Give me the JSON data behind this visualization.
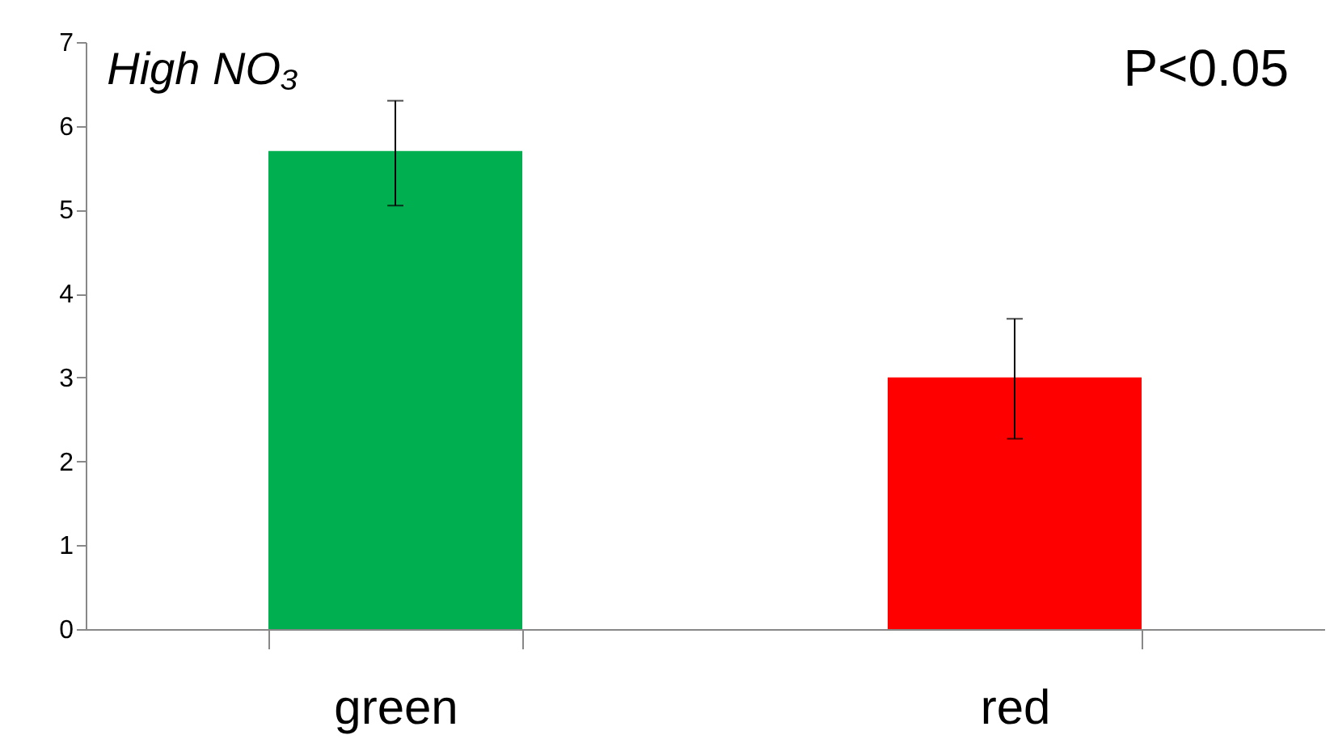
{
  "chart_data": {
    "type": "bar",
    "title": "High NO₃",
    "categories": [
      "green",
      "red"
    ],
    "values": [
      5.7,
      3.0
    ],
    "colors": [
      "#00b050",
      "#ff0000"
    ],
    "errors": [
      [
        5.05,
        6.3
      ],
      [
        2.27,
        3.7
      ]
    ],
    "ylim": [
      0,
      7
    ],
    "yticks": [
      0,
      1,
      2,
      3,
      4,
      5,
      6,
      7
    ],
    "annotations": [
      "P<0.05"
    ],
    "grid": false,
    "legend": false
  }
}
